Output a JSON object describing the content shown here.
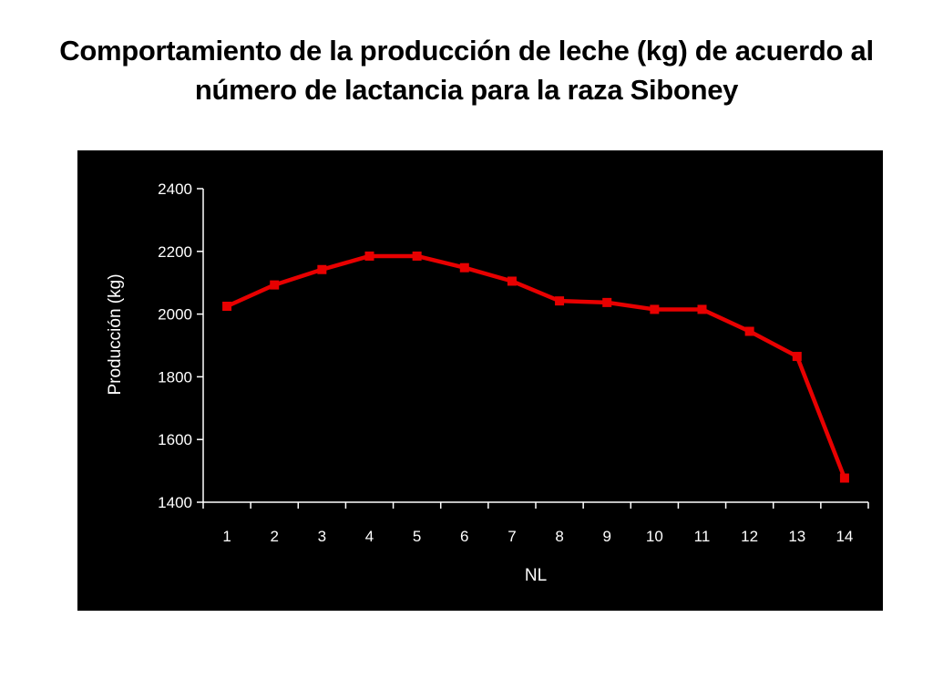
{
  "title": "Comportamiento de la producción de leche (kg) de acuerdo al número de lactancia para la raza Siboney",
  "chart_data": {
    "type": "line",
    "title": "Comportamiento de la producción de leche (kg) de acuerdo al número de lactancia para la raza Siboney",
    "xlabel": "NL",
    "ylabel": "Producción (kg)",
    "categories": [
      "1",
      "2",
      "3",
      "4",
      "5",
      "6",
      "7",
      "8",
      "9",
      "10",
      "11",
      "12",
      "13",
      "14"
    ],
    "series": [
      {
        "values": [
          2025,
          2093,
          2142,
          2185,
          2185,
          2148,
          2105,
          2042,
          2037,
          2015,
          2015,
          1945,
          1865,
          1477
        ],
        "color": "#e80000",
        "marker": "square"
      }
    ],
    "ylim": [
      1400,
      2400
    ],
    "yticks": [
      1400,
      1600,
      1800,
      2000,
      2200,
      2400
    ],
    "grid": false,
    "legend": "none",
    "background": "#000000",
    "text_color": "#ffffff"
  }
}
